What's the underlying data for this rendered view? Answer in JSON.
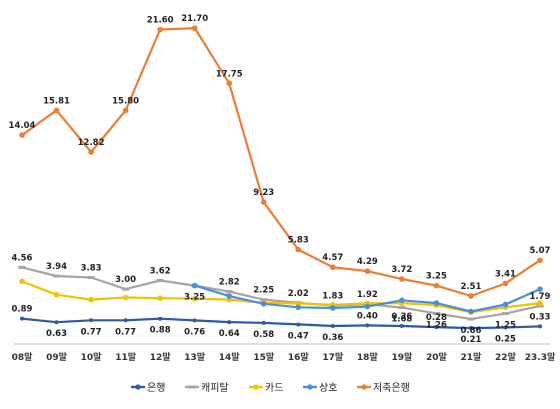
{
  "chart_data": {
    "type": "line",
    "categories": [
      "08말",
      "09말",
      "10말",
      "11말",
      "12말",
      "13말",
      "14말",
      "15말",
      "16말",
      "17말",
      "18말",
      "19말",
      "20말",
      "21말",
      "22말",
      "23.3말"
    ],
    "ylim": [
      0,
      23
    ],
    "grid": false,
    "legend_position": "bottom",
    "series": [
      {
        "name": "은행",
        "color": "#2e59a7",
        "values": [
          0.89,
          0.63,
          0.77,
          0.77,
          0.88,
          0.76,
          0.64,
          0.58,
          0.47,
          0.36,
          0.4,
          0.36,
          0.28,
          0.21,
          0.25,
          0.33
        ],
        "labels": [
          "0.89",
          "0.63",
          "0.77",
          "0.77",
          "0.88",
          "0.76",
          "0.64",
          "0.58",
          "0.47",
          "0.36",
          "0.40",
          "0.36",
          "0.28",
          "0.21",
          "0.25",
          "0.33"
        ],
        "label_pos": [
          "above",
          "below",
          "below",
          "below",
          "below",
          "below",
          "below",
          "below",
          "below",
          "below",
          "above",
          "above",
          "above",
          "below",
          "below",
          "above"
        ]
      },
      {
        "name": "캐피탈",
        "color": "#a5a5a5",
        "values": [
          4.56,
          3.94,
          3.83,
          3.0,
          3.62,
          3.25,
          2.82,
          2.25,
          2.02,
          1.83,
          1.92,
          1.68,
          1.26,
          0.86,
          1.25,
          1.79
        ],
        "labels": [
          "4.56",
          "3.94",
          "3.83",
          "3.00",
          "3.62",
          "3.25",
          "2.82",
          "2.25",
          "2.02",
          "1.83",
          "1.92",
          "1.68",
          "1.26",
          "0.86",
          "1.25",
          "1.79"
        ],
        "label_pos": [
          "above",
          "above",
          "above",
          "above",
          "above",
          "below",
          "above",
          "above",
          "above",
          "above",
          "above",
          "below",
          "below",
          "below",
          "below",
          "above"
        ]
      },
      {
        "name": "카드",
        "color": "#f2c200",
        "values": [
          3.55,
          2.6,
          2.25,
          2.4,
          2.35,
          2.32,
          2.25,
          2.02,
          1.98,
          1.88,
          1.98,
          2.0,
          1.85,
          1.35,
          1.7,
          2.0
        ],
        "labels": [],
        "label_pos": []
      },
      {
        "name": "상호",
        "color": "#4a90d9",
        "values": [
          null,
          null,
          null,
          null,
          null,
          3.25,
          2.5,
          1.95,
          1.7,
          1.65,
          1.75,
          2.2,
          2.0,
          1.4,
          1.9,
          3.0
        ],
        "labels": [],
        "label_pos": []
      },
      {
        "name": "저축은행",
        "color": "#ed7d31",
        "values": [
          14.04,
          15.81,
          12.82,
          15.8,
          21.6,
          21.7,
          17.75,
          9.23,
          5.83,
          4.57,
          4.29,
          3.72,
          3.25,
          2.51,
          3.41,
          5.07
        ],
        "labels": [
          "14.04",
          "15.81",
          "12.82",
          "15.80",
          "21.60",
          "21.70",
          "17.75",
          "9.23",
          "5.83",
          "4.57",
          "4.29",
          "3.72",
          "3.25",
          "2.51",
          "3.41",
          "5.07"
        ],
        "label_pos": [
          "above",
          "above",
          "above",
          "above",
          "above",
          "above",
          "above",
          "above",
          "above",
          "above",
          "above",
          "above",
          "above",
          "above",
          "above",
          "above"
        ]
      }
    ]
  }
}
